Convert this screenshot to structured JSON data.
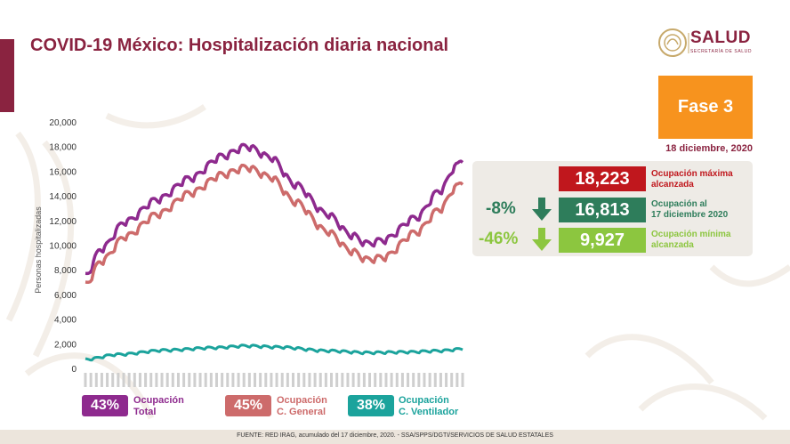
{
  "title": "COVID-19 México: Hospitalización diaria nacional",
  "logo": {
    "word": "SALUD",
    "sub": "SECRETARÍA DE SALUD"
  },
  "fase": "Fase 3",
  "date": "18 diciembre, 2020",
  "stats": {
    "max": {
      "value": "18,223",
      "label1": "Ocupación máxima",
      "label2": "alcanzada",
      "color": "#c0171d"
    },
    "current": {
      "value": "16,813",
      "label1": "Ocupación al",
      "label2": "17 diciembre 2020",
      "color": "#2e7d5b",
      "pct": "-8%",
      "pct_color": "#2e7d5b"
    },
    "min": {
      "value": "9,927",
      "label1": "Ocupación mínima",
      "label2": "alcanzada",
      "color": "#8cc63f",
      "pct": "-46%",
      "pct_color": "#8cc63f"
    }
  },
  "legend": [
    {
      "pct": "43%",
      "label1": "Ocupación",
      "label2": "Total",
      "color": "#8e2a8e",
      "text_color": "#8e2a8e"
    },
    {
      "pct": "45%",
      "label1": "Ocupación",
      "label2": "C. General",
      "color": "#cd6b6b",
      "text_color": "#cd6b6b"
    },
    {
      "pct": "38%",
      "label1": "Ocupación",
      "label2": "C. Ventilador",
      "color": "#1ba39c",
      "text_color": "#1ba39c"
    }
  ],
  "footer": "FUENTE: RED IRAG, acumulado del 17 diciembre, 2020. -  SSA/SPPS/DGTI/SERVICIOS DE SALUD ESTATALES",
  "chart_data": {
    "type": "line",
    "ylabel": "Personas hospitalizadas",
    "ylim": [
      0,
      20000
    ],
    "yticks": [
      "0",
      "2,000",
      "4,000",
      "6,000",
      "8,000",
      "10,000",
      "12,000",
      "14,000",
      "16,000",
      "18,000",
      "20,000"
    ],
    "ytick_values": [
      0,
      2000,
      4000,
      6000,
      8000,
      10000,
      12000,
      14000,
      16000,
      18000,
      20000
    ],
    "grid": false,
    "x_points": 235,
    "series": [
      {
        "name": "Ocupación Total",
        "color": "#8e2a8e",
        "anchors": [
          [
            0,
            7600
          ],
          [
            10,
            9800
          ],
          [
            25,
            12000
          ],
          [
            45,
            13800
          ],
          [
            65,
            15500
          ],
          [
            85,
            17300
          ],
          [
            100,
            18100
          ],
          [
            115,
            17200
          ],
          [
            130,
            15000
          ],
          [
            150,
            12600
          ],
          [
            165,
            10900
          ],
          [
            175,
            10200
          ],
          [
            185,
            10500
          ],
          [
            205,
            12300
          ],
          [
            220,
            14500
          ],
          [
            230,
            16500
          ],
          [
            234,
            17000
          ]
        ],
        "wiggle": 350
      },
      {
        "name": "Ocupación C. General",
        "color": "#cd6b6b",
        "anchors": [
          [
            0,
            6900
          ],
          [
            10,
            8800
          ],
          [
            25,
            10800
          ],
          [
            45,
            12600
          ],
          [
            65,
            14300
          ],
          [
            85,
            15800
          ],
          [
            100,
            16400
          ],
          [
            115,
            15600
          ],
          [
            130,
            13600
          ],
          [
            150,
            11200
          ],
          [
            165,
            9600
          ],
          [
            175,
            8900
          ],
          [
            185,
            9100
          ],
          [
            205,
            11100
          ],
          [
            220,
            13000
          ],
          [
            230,
            14800
          ],
          [
            234,
            15200
          ]
        ],
        "wiggle": 350
      },
      {
        "name": "Ocupación C. Ventilador",
        "color": "#1ba39c",
        "anchors": [
          [
            0,
            800
          ],
          [
            20,
            1200
          ],
          [
            50,
            1550
          ],
          [
            80,
            1750
          ],
          [
            100,
            1900
          ],
          [
            120,
            1800
          ],
          [
            150,
            1500
          ],
          [
            175,
            1350
          ],
          [
            200,
            1400
          ],
          [
            220,
            1500
          ],
          [
            234,
            1650
          ]
        ],
        "wiggle": 120
      }
    ]
  }
}
